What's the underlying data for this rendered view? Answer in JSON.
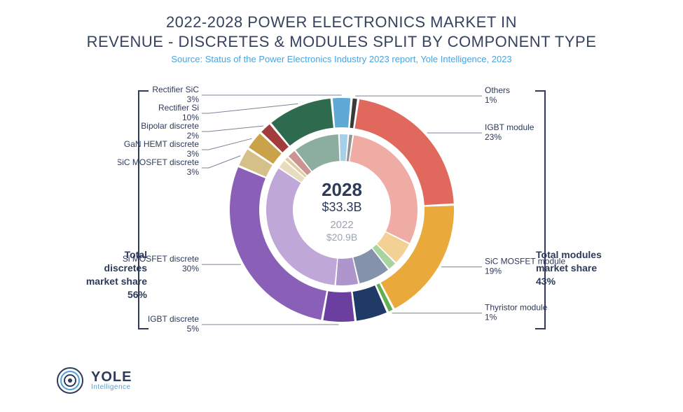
{
  "title_line1": "2022-2028 POWER ELECTRONICS MARKET IN",
  "title_line2": "REVENUE - DISCRETES & MODULES SPLIT BY COMPONENT TYPE",
  "subtitle": "Source: Status of the Power Electronics Industry 2023 report, Yole Intelligence, 2023",
  "center": {
    "year_outer": "2028",
    "value_outer": "$33.3B",
    "year_inner": "2022",
    "value_inner": "$20.9B"
  },
  "left_summary": {
    "l1": "Total",
    "l2": "discretes",
    "l3": "market share",
    "pct": "56%"
  },
  "right_summary": {
    "l1": "Total modules",
    "l2": "market share",
    "pct": "43%"
  },
  "logo": {
    "name": "YOLE",
    "sub": "Intelligence"
  },
  "chart": {
    "type": "nested-donut",
    "background": "#ffffff",
    "start_angle_deg": 5,
    "outer": {
      "r_out": 160,
      "r_in": 118
    },
    "inner": {
      "r_out": 108,
      "r_in": 70
    },
    "gap_deg": 1.2,
    "label_fontsize": 12,
    "leader_color": "#7a8296",
    "bracket_color": "#2d3a5a",
    "slices": [
      {
        "key": "others",
        "label": "Others",
        "outer_pct": 1,
        "inner_pct": 1,
        "color": "#3a3a3a",
        "side": "right"
      },
      {
        "key": "igbt_module",
        "label": "IGBT module",
        "outer_pct": 23,
        "inner_pct": 30,
        "color": "#e0685c",
        "side": "right"
      },
      {
        "key": "sic_module",
        "label": "SiC MOSFET module",
        "outer_pct": 19,
        "inner_pct": 5,
        "color": "#e9a93b",
        "side": "right"
      },
      {
        "key": "thy_module",
        "label": "Thyristor module",
        "outer_pct": 1,
        "inner_pct": 2,
        "color": "#61b04f",
        "side": "right"
      },
      {
        "key": "unlabeled_a",
        "label": "",
        "outer_pct": 5,
        "inner_pct": 7,
        "color": "#1f3a66",
        "side": "right"
      },
      {
        "key": "igbt_disc",
        "label": "IGBT discrete",
        "outer_pct": 5,
        "inner_pct": 5,
        "color": "#6b3fa0",
        "side": "left"
      },
      {
        "key": "si_mosfet",
        "label": "Si MOSFET discrete",
        "outer_pct": 30,
        "inner_pct": 33,
        "color": "#8a5fb8",
        "side": "left"
      },
      {
        "key": "sic_mosfet_d",
        "label": "SiC MOSFET discrete",
        "outer_pct": 3,
        "inner_pct": 2,
        "color": "#d6c08a",
        "side": "left"
      },
      {
        "key": "gan_hemt",
        "label": "GaN HEMT discrete",
        "outer_pct": 3,
        "inner_pct": 1,
        "color": "#c9a24a",
        "side": "left"
      },
      {
        "key": "bipolar",
        "label": "Bipolar discrete",
        "outer_pct": 2,
        "inner_pct": 2,
        "color": "#a23b3b",
        "side": "left"
      },
      {
        "key": "rect_si",
        "label": "Rectifier Si",
        "outer_pct": 10,
        "inner_pct": 10,
        "color": "#2e6b4e",
        "side": "left"
      },
      {
        "key": "rect_sic",
        "label": "Rectifier SiC",
        "outer_pct": 3,
        "inner_pct": 2,
        "color": "#5ea9d6",
        "side": "left"
      }
    ],
    "inner_lighten": 0.45
  }
}
